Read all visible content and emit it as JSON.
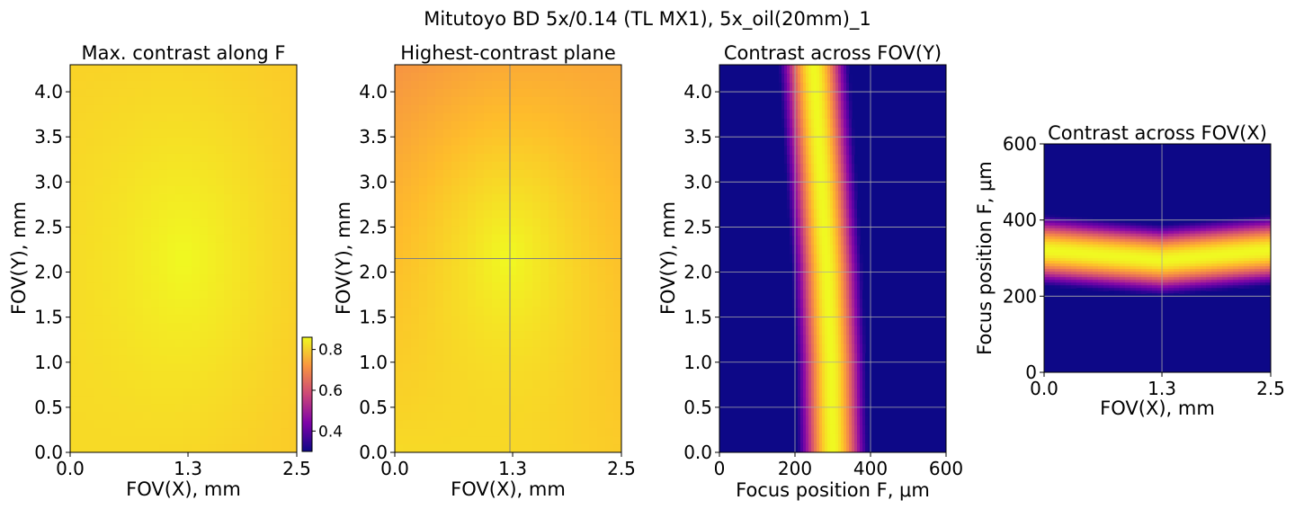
{
  "figure": {
    "title": "Mitutoyo BD 5x/0.14 (TL MX1), 5x_oil(20mm)_1",
    "colors": {
      "background_low": "#0d0887",
      "mid_purple": "#7e03a8",
      "magenta": "#cc4778",
      "orange": "#f89540",
      "yellow": "#f0f921",
      "grid": "#a8a8a8"
    }
  },
  "chart_data": [
    {
      "type": "heatmap",
      "title": "Max. contrast along F",
      "xlabel": "FOV(X), mm",
      "ylabel": "FOV(Y), mm",
      "xlim": [
        0.0,
        2.5
      ],
      "ylim": [
        0.0,
        4.3
      ],
      "x_ticks": [
        "0.0",
        "1.3",
        "2.5"
      ],
      "y_ticks": [
        "0.0",
        "0.5",
        "1.0",
        "1.5",
        "2.0",
        "2.5",
        "3.0",
        "3.5",
        "4.0"
      ],
      "grid": false,
      "center_value": 0.86,
      "corner_values": {
        "bottom_left": 0.82,
        "bottom_right": 0.8,
        "top_left": 0.81,
        "top_right": 0.8
      },
      "colorbar": {
        "ticks": [
          "0.4",
          "0.6",
          "0.8"
        ],
        "range": [
          0.3,
          0.86
        ]
      }
    },
    {
      "type": "heatmap",
      "title": "Highest-contrast plane",
      "xlabel": "FOV(X), mm",
      "ylabel": "FOV(Y), mm",
      "xlim": [
        0.0,
        2.5
      ],
      "ylim": [
        0.0,
        4.3
      ],
      "x_ticks": [
        "0.0",
        "1.3",
        "2.5"
      ],
      "y_ticks": [
        "0.0",
        "0.5",
        "1.0",
        "1.5",
        "2.0",
        "2.5",
        "3.0",
        "3.5",
        "4.0"
      ],
      "crosshair": {
        "x": 1.27,
        "y": 2.15
      },
      "center_value": 0.86,
      "corner_values": {
        "bottom_left": 0.82,
        "bottom_right": 0.8,
        "top_left": 0.72,
        "top_right": 0.75
      }
    },
    {
      "type": "heatmap",
      "title": "Contrast across FOV(Y)",
      "xlabel": "Focus position F, μm",
      "ylabel": "FOV(Y), mm",
      "xlim": [
        0,
        600
      ],
      "ylim": [
        0.0,
        4.3
      ],
      "x_ticks": [
        "0",
        "200",
        "400",
        "600"
      ],
      "y_ticks": [
        "0.0",
        "0.5",
        "1.0",
        "1.5",
        "2.0",
        "2.5",
        "3.0",
        "3.5",
        "4.0"
      ],
      "grid": true,
      "peak_focus_by_y": {
        "y": [
          0.0,
          1.0,
          2.0,
          3.0,
          4.3
        ],
        "f": [
          300,
          295,
          285,
          270,
          250
        ]
      },
      "band_halfwidth": 95
    },
    {
      "type": "heatmap",
      "title": "Contrast across FOV(X)",
      "xlabel": "FOV(X), mm",
      "ylabel": "Focus position F, μm",
      "xlim": [
        0.0,
        2.5
      ],
      "ylim": [
        0,
        600
      ],
      "x_ticks": [
        "0.0",
        "1.3",
        "2.5"
      ],
      "y_ticks": [
        "0",
        "200",
        "400",
        "600"
      ],
      "grid": true,
      "peak_focus_by_x": {
        "x": [
          0.0,
          1.3,
          2.5
        ],
        "f": [
          320,
          295,
          320
        ]
      },
      "band_halfwidth": 95
    }
  ]
}
